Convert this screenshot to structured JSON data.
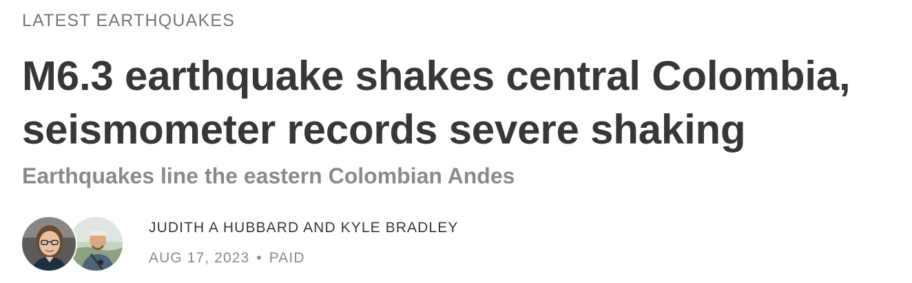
{
  "post": {
    "section_label": "LATEST EARTHQUAKES",
    "title": "M6.3 earthquake shakes central Colombia, seismometer records severe shaking",
    "subtitle": "Earthquakes line the eastern Colombian Andes",
    "byline": {
      "authors": "JUDITH A HUBBARD AND KYLE BRADLEY",
      "date": "AUG 17, 2023",
      "separator": "•",
      "access": "PAID"
    },
    "avatars": [
      {
        "icon": "author-avatar-judith-hubbard"
      },
      {
        "icon": "author-avatar-kyle-bradley"
      }
    ]
  },
  "colors": {
    "title": "#363737",
    "section_label": "#757575",
    "subtitle": "#8a8a8a",
    "meta": "#8a8a8a"
  }
}
